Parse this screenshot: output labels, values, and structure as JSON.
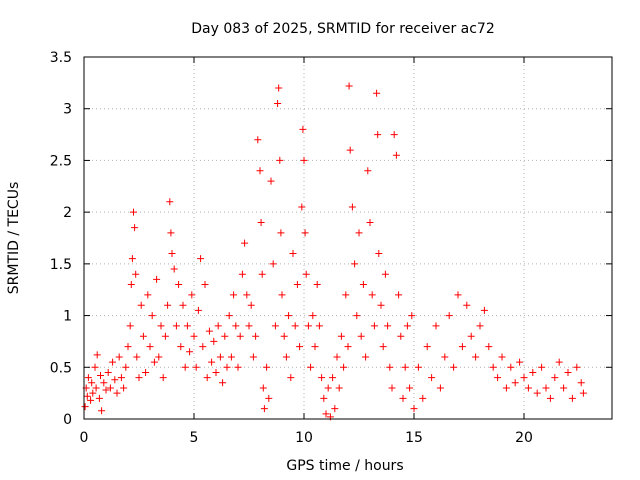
{
  "chart_data": {
    "type": "scatter",
    "title": "Day 083 of 2025, SRMTID for receiver ac72",
    "xlabel": "GPS time / hours",
    "ylabel": "SRMTID / TECUs",
    "xlim": [
      0,
      24
    ],
    "ylim": [
      0,
      3.5
    ],
    "x_ticks": [
      "0",
      "5",
      "10",
      "15",
      "20"
    ],
    "y_ticks": [
      "0",
      "0.5",
      "1",
      "1.5",
      "2",
      "2.5",
      "3",
      "3.5"
    ],
    "grid": true,
    "marker": "+",
    "color": "#ff0000",
    "series": [
      {
        "name": "SRMTID",
        "points": [
          [
            0.05,
            0.12
          ],
          [
            0.1,
            0.3
          ],
          [
            0.15,
            0.22
          ],
          [
            0.2,
            0.4
          ],
          [
            0.3,
            0.18
          ],
          [
            0.35,
            0.35
          ],
          [
            0.4,
            0.25
          ],
          [
            0.5,
            0.5
          ],
          [
            0.55,
            0.3
          ],
          [
            0.6,
            0.62
          ],
          [
            0.7,
            0.2
          ],
          [
            0.75,
            0.42
          ],
          [
            0.8,
            0.08
          ],
          [
            0.9,
            0.35
          ],
          [
            1.0,
            0.28
          ],
          [
            1.1,
            0.45
          ],
          [
            1.2,
            0.3
          ],
          [
            1.3,
            0.55
          ],
          [
            1.4,
            0.38
          ],
          [
            1.5,
            0.25
          ],
          [
            1.6,
            0.6
          ],
          [
            1.7,
            0.4
          ],
          [
            1.8,
            0.3
          ],
          [
            1.9,
            0.5
          ],
          [
            2.0,
            0.7
          ],
          [
            2.1,
            0.9
          ],
          [
            2.15,
            1.3
          ],
          [
            2.2,
            1.55
          ],
          [
            2.25,
            2.0
          ],
          [
            2.3,
            1.85
          ],
          [
            2.35,
            1.4
          ],
          [
            2.4,
            0.6
          ],
          [
            2.5,
            0.4
          ],
          [
            2.6,
            1.1
          ],
          [
            2.7,
            0.8
          ],
          [
            2.8,
            0.45
          ],
          [
            2.9,
            1.2
          ],
          [
            3.0,
            0.7
          ],
          [
            3.1,
            1.0
          ],
          [
            3.2,
            0.55
          ],
          [
            3.3,
            1.35
          ],
          [
            3.4,
            0.6
          ],
          [
            3.5,
            0.9
          ],
          [
            3.6,
            0.4
          ],
          [
            3.7,
            0.8
          ],
          [
            3.8,
            1.1
          ],
          [
            3.9,
            2.1
          ],
          [
            3.95,
            1.8
          ],
          [
            4.0,
            1.6
          ],
          [
            4.1,
            1.45
          ],
          [
            4.2,
            0.9
          ],
          [
            4.3,
            1.3
          ],
          [
            4.4,
            0.7
          ],
          [
            4.5,
            1.1
          ],
          [
            4.6,
            0.5
          ],
          [
            4.7,
            0.9
          ],
          [
            4.8,
            0.65
          ],
          [
            4.9,
            1.2
          ],
          [
            5.0,
            0.8
          ],
          [
            5.1,
            0.5
          ],
          [
            5.2,
            1.05
          ],
          [
            5.3,
            1.55
          ],
          [
            5.4,
            0.7
          ],
          [
            5.5,
            1.3
          ],
          [
            5.6,
            0.4
          ],
          [
            5.7,
            0.85
          ],
          [
            5.8,
            0.55
          ],
          [
            5.9,
            0.75
          ],
          [
            6.0,
            0.45
          ],
          [
            6.1,
            0.9
          ],
          [
            6.2,
            0.6
          ],
          [
            6.3,
            0.35
          ],
          [
            6.4,
            0.8
          ],
          [
            6.5,
            0.5
          ],
          [
            6.6,
            1.0
          ],
          [
            6.7,
            0.6
          ],
          [
            6.8,
            1.2
          ],
          [
            6.9,
            0.9
          ],
          [
            7.0,
            0.5
          ],
          [
            7.1,
            0.8
          ],
          [
            7.2,
            1.4
          ],
          [
            7.3,
            1.7
          ],
          [
            7.4,
            1.2
          ],
          [
            7.5,
            0.9
          ],
          [
            7.6,
            1.1
          ],
          [
            7.7,
            0.6
          ],
          [
            7.8,
            0.8
          ],
          [
            7.9,
            2.7
          ],
          [
            8.0,
            2.4
          ],
          [
            8.05,
            1.9
          ],
          [
            8.1,
            1.4
          ],
          [
            8.15,
            0.3
          ],
          [
            8.2,
            0.1
          ],
          [
            8.3,
            0.5
          ],
          [
            8.4,
            0.2
          ],
          [
            8.5,
            2.3
          ],
          [
            8.6,
            1.5
          ],
          [
            8.7,
            0.9
          ],
          [
            8.8,
            3.05
          ],
          [
            8.85,
            3.2
          ],
          [
            8.9,
            2.5
          ],
          [
            8.95,
            1.8
          ],
          [
            9.0,
            1.2
          ],
          [
            9.1,
            0.8
          ],
          [
            9.2,
            0.6
          ],
          [
            9.3,
            1.0
          ],
          [
            9.4,
            0.4
          ],
          [
            9.5,
            1.6
          ],
          [
            9.6,
            0.9
          ],
          [
            9.7,
            1.3
          ],
          [
            9.8,
            0.7
          ],
          [
            9.9,
            2.05
          ],
          [
            9.95,
            2.8
          ],
          [
            10.0,
            2.5
          ],
          [
            10.05,
            1.8
          ],
          [
            10.1,
            1.4
          ],
          [
            10.2,
            0.9
          ],
          [
            10.3,
            0.5
          ],
          [
            10.4,
            1.0
          ],
          [
            10.5,
            0.7
          ],
          [
            10.6,
            1.3
          ],
          [
            10.7,
            0.9
          ],
          [
            10.8,
            0.4
          ],
          [
            10.9,
            0.2
          ],
          [
            11.0,
            0.05
          ],
          [
            11.1,
            0.3
          ],
          [
            11.2,
            0.02
          ],
          [
            11.3,
            0.4
          ],
          [
            11.4,
            0.1
          ],
          [
            11.5,
            0.6
          ],
          [
            11.6,
            0.3
          ],
          [
            11.7,
            0.8
          ],
          [
            11.8,
            0.5
          ],
          [
            11.9,
            1.2
          ],
          [
            12.0,
            0.7
          ],
          [
            12.05,
            3.22
          ],
          [
            12.1,
            2.6
          ],
          [
            12.2,
            2.05
          ],
          [
            12.3,
            1.5
          ],
          [
            12.4,
            1.0
          ],
          [
            12.5,
            1.8
          ],
          [
            12.6,
            0.8
          ],
          [
            12.7,
            1.3
          ],
          [
            12.8,
            0.6
          ],
          [
            12.9,
            2.4
          ],
          [
            13.0,
            1.9
          ],
          [
            13.1,
            1.2
          ],
          [
            13.2,
            0.9
          ],
          [
            13.3,
            3.15
          ],
          [
            13.35,
            2.75
          ],
          [
            13.4,
            1.6
          ],
          [
            13.5,
            1.1
          ],
          [
            13.6,
            0.7
          ],
          [
            13.7,
            1.4
          ],
          [
            13.8,
            0.9
          ],
          [
            13.9,
            0.5
          ],
          [
            14.0,
            0.3
          ],
          [
            14.1,
            2.75
          ],
          [
            14.2,
            2.55
          ],
          [
            14.3,
            1.2
          ],
          [
            14.4,
            0.8
          ],
          [
            14.5,
            0.2
          ],
          [
            14.6,
            0.5
          ],
          [
            14.7,
            0.9
          ],
          [
            14.8,
            0.3
          ],
          [
            14.9,
            1.0
          ],
          [
            15.0,
            0.1
          ],
          [
            15.2,
            0.5
          ],
          [
            15.4,
            0.2
          ],
          [
            15.6,
            0.7
          ],
          [
            15.8,
            0.4
          ],
          [
            16.0,
            0.9
          ],
          [
            16.2,
            0.3
          ],
          [
            16.4,
            0.6
          ],
          [
            16.6,
            1.0
          ],
          [
            16.8,
            0.5
          ],
          [
            17.0,
            1.2
          ],
          [
            17.2,
            0.7
          ],
          [
            17.4,
            1.1
          ],
          [
            17.6,
            0.8
          ],
          [
            17.8,
            0.6
          ],
          [
            18.0,
            0.9
          ],
          [
            18.2,
            1.05
          ],
          [
            18.4,
            0.7
          ],
          [
            18.6,
            0.5
          ],
          [
            18.8,
            0.4
          ],
          [
            19.0,
            0.6
          ],
          [
            19.2,
            0.3
          ],
          [
            19.4,
            0.5
          ],
          [
            19.6,
            0.35
          ],
          [
            19.8,
            0.55
          ],
          [
            20.0,
            0.4
          ],
          [
            20.2,
            0.3
          ],
          [
            20.4,
            0.45
          ],
          [
            20.6,
            0.25
          ],
          [
            20.8,
            0.5
          ],
          [
            21.0,
            0.3
          ],
          [
            21.2,
            0.2
          ],
          [
            21.4,
            0.4
          ],
          [
            21.6,
            0.55
          ],
          [
            21.8,
            0.3
          ],
          [
            22.0,
            0.45
          ],
          [
            22.2,
            0.2
          ],
          [
            22.4,
            0.5
          ],
          [
            22.6,
            0.35
          ],
          [
            22.7,
            0.25
          ]
        ]
      }
    ]
  }
}
